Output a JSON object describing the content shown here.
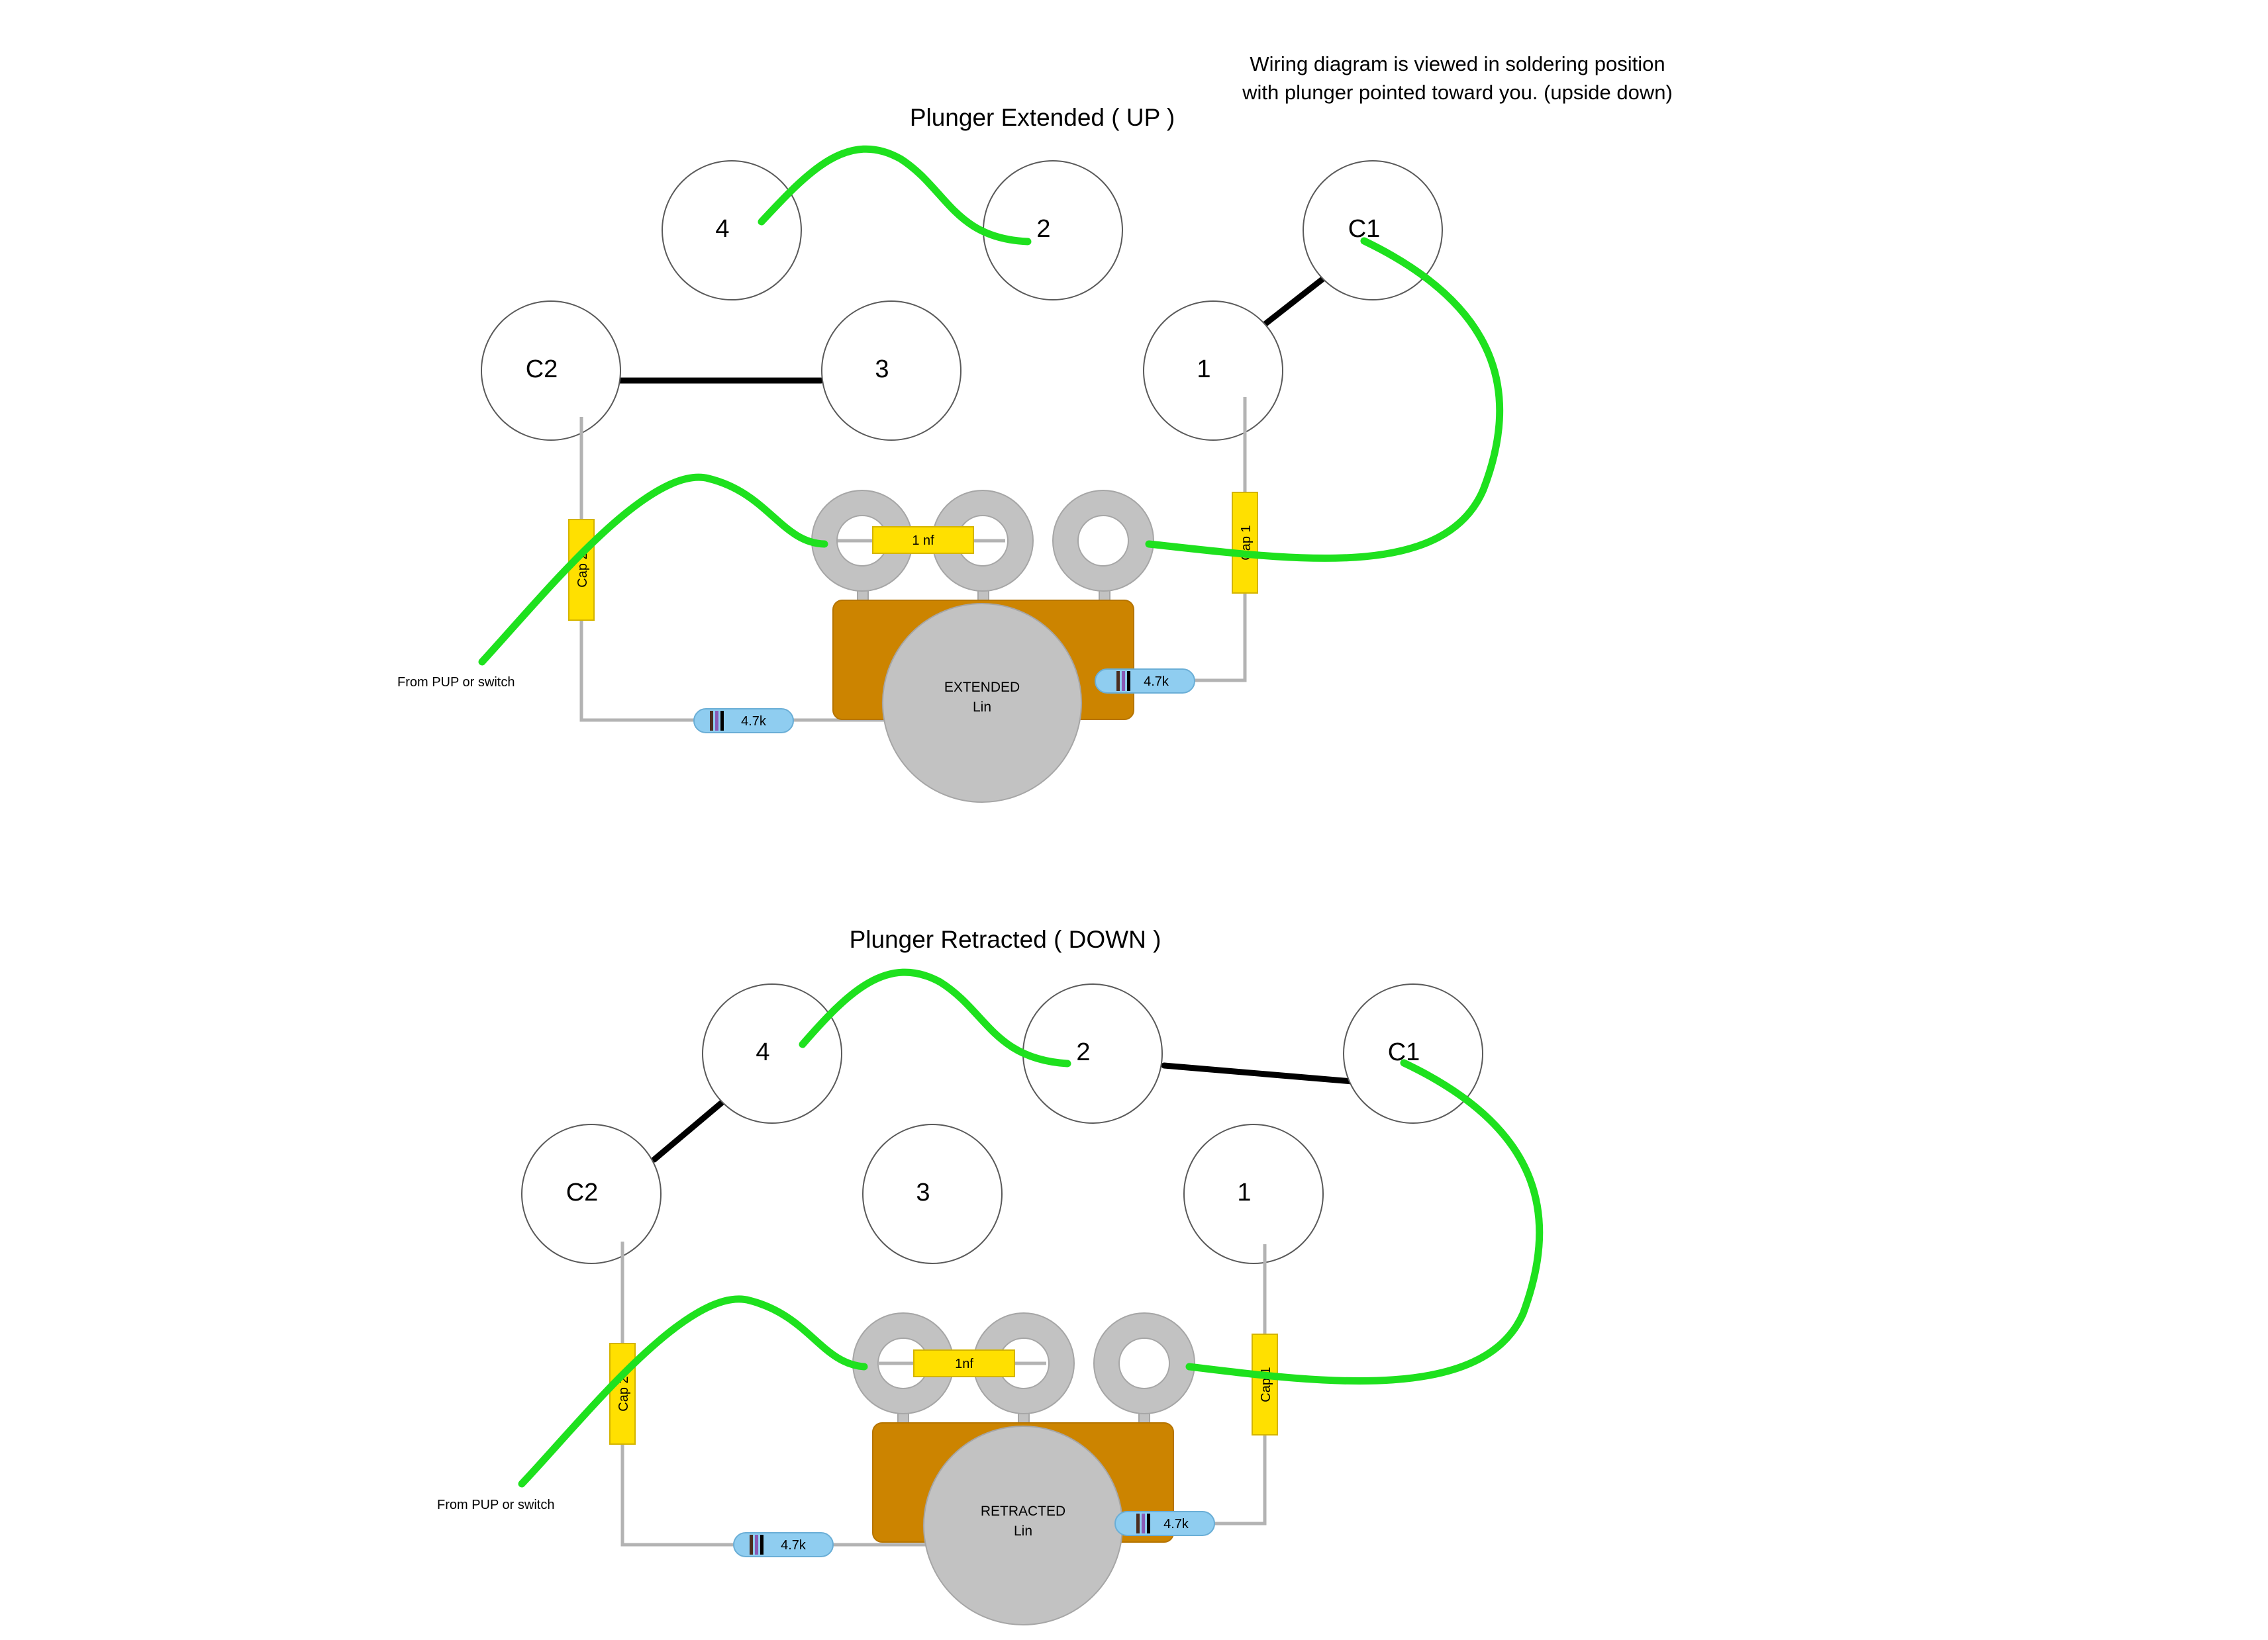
{
  "note": {
    "line1": "Wiring diagram is  viewed in soldering position",
    "line2": "with plunger pointed toward you. (upside down)"
  },
  "diagrams": [
    {
      "title": "Plunger Extended ( UP )",
      "lugs": {
        "four": "4",
        "two": "2",
        "c1": "C1",
        "c2": "C2",
        "three": "3",
        "one": "1"
      },
      "cap1": "Cap 1",
      "cap2": "Cap 2",
      "small_cap": "1 nf",
      "res_left": "4.7k",
      "res_right": "4.7k",
      "pot_line1": "EXTENDED",
      "pot_line2": "Lin",
      "from_label": "From PUP or switch"
    },
    {
      "title": "Plunger Retracted ( DOWN )",
      "lugs": {
        "four": "4",
        "two": "2",
        "c1": "C1",
        "c2": "C2",
        "three": "3",
        "one": "1"
      },
      "cap1": "Cap 1",
      "cap2": "Cap 2",
      "small_cap": "1nf",
      "res_left": "4.7k",
      "res_right": "4.7k",
      "pot_line1": "RETRACTED",
      "pot_line2": "Lin",
      "from_label": "From PUP or switch"
    }
  ],
  "colors": {
    "green_wire": "#1ee11e",
    "black_wire": "#000000",
    "capacitor": "#ffe000",
    "resistor": "#8fcdf0",
    "pot_body": "#cc8400",
    "pot_knob": "#c2c2c2"
  }
}
